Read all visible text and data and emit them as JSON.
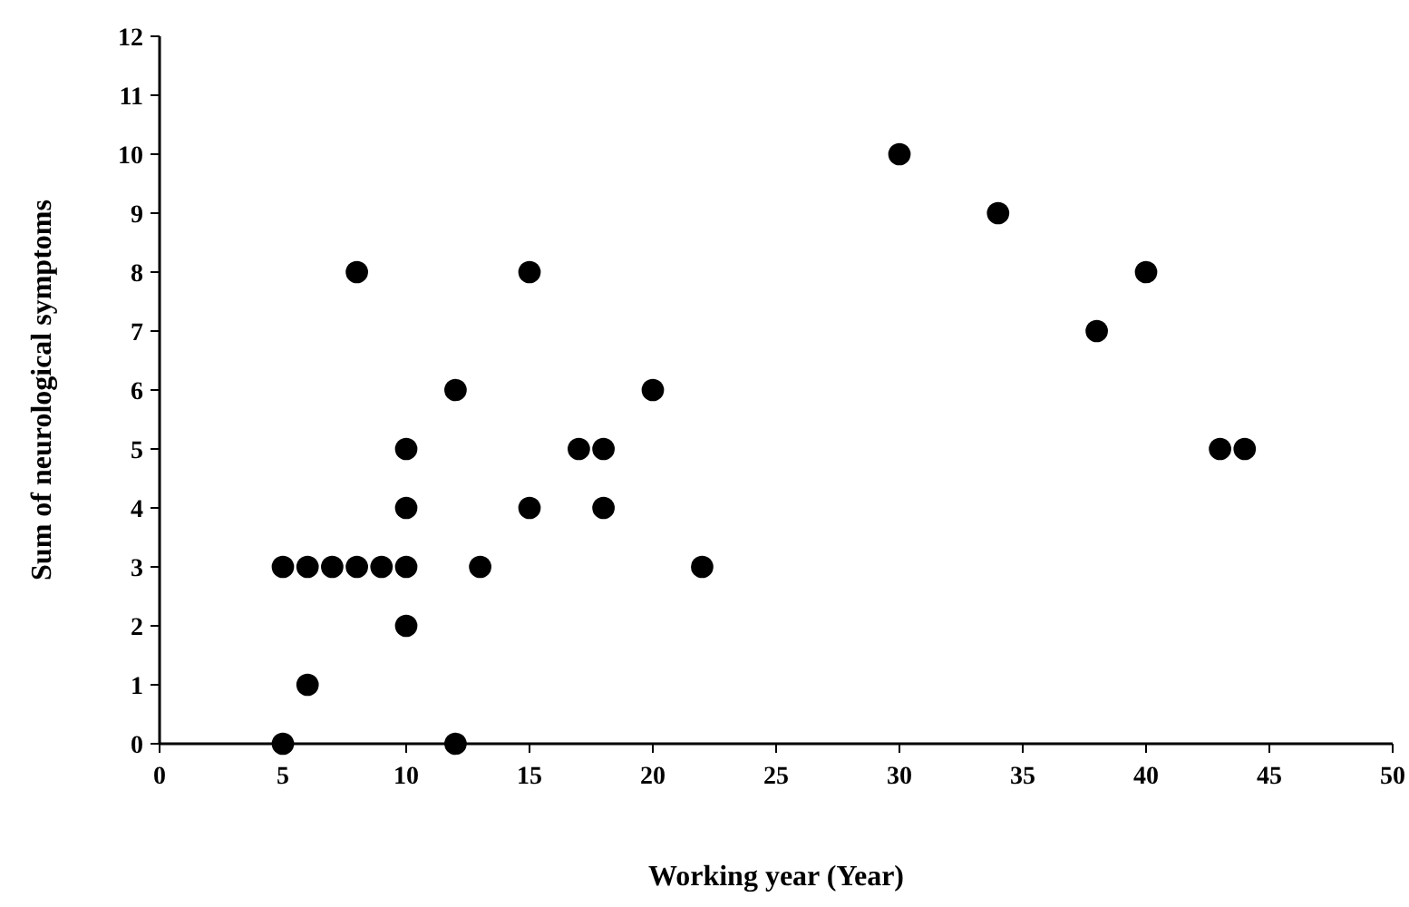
{
  "chart_data": {
    "type": "scatter",
    "xlabel": "Working year (Year)",
    "ylabel": "Sum of neurological symptoms",
    "x": [
      5,
      5,
      6,
      7,
      8,
      9,
      10,
      6,
      8,
      10,
      10,
      10,
      12,
      12,
      13,
      15,
      15,
      17,
      18,
      18,
      20,
      22,
      30,
      34,
      38,
      40,
      43,
      44
    ],
    "series": [
      {
        "color": "#000000",
        "values": [
          0,
          3,
          3,
          3,
          3,
          3,
          3,
          1,
          8,
          2,
          4,
          5,
          6,
          0,
          3,
          8,
          4,
          5,
          5,
          4,
          6,
          3,
          10,
          9,
          7,
          8,
          5,
          5
        ]
      }
    ],
    "xlim": [
      0,
      50
    ],
    "xticks": [
      0,
      5,
      10,
      15,
      20,
      25,
      30,
      35,
      40,
      45,
      50
    ],
    "ylim": [
      0,
      12
    ],
    "yticks": [
      0,
      1,
      2,
      3,
      4,
      5,
      6,
      7,
      8,
      9,
      10,
      11,
      12
    ],
    "marker": "circle"
  }
}
